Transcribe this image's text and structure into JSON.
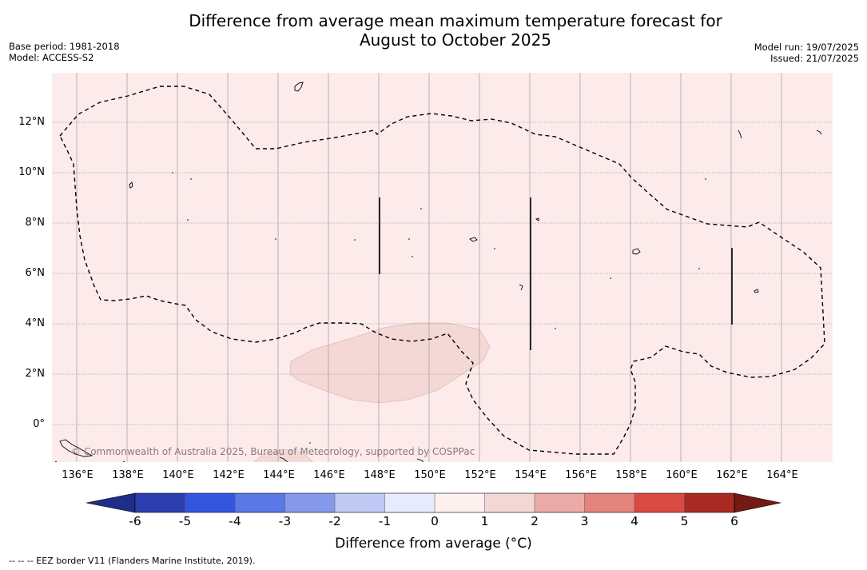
{
  "header": {
    "title_line1": "Difference from average mean maximum temperature forecast for",
    "title_line2": "August to October 2025",
    "base_period": "Base period: 1981-2018",
    "model": "Model: ACCESS-S2",
    "model_run": "Model run: 19/07/2025",
    "issued": "Issued: 21/07/2025"
  },
  "map": {
    "lat_ticks": [
      "12°N",
      "10°N",
      "8°N",
      "6°N",
      "4°N",
      "2°N",
      "0°"
    ],
    "lon_ticks": [
      "136°E",
      "138°E",
      "140°E",
      "142°E",
      "144°E",
      "146°E",
      "148°E",
      "150°E",
      "152°E",
      "154°E",
      "156°E",
      "158°E",
      "160°E",
      "162°E",
      "164°E"
    ],
    "background_anomaly_class": "0 to 1",
    "patch_anomaly_class": "1 to 2",
    "copyright": "© Commonwealth of Australia 2025, Bureau of Meteorology, supported by COSPPac"
  },
  "colorbar": {
    "title": "Difference from average (°C)",
    "labels": [
      "-6",
      "-5",
      "-4",
      "-3",
      "-2",
      "-1",
      "0",
      "1",
      "2",
      "3",
      "4",
      "5",
      "6"
    ],
    "colors": [
      "#1f2d8a",
      "#2b3fb0",
      "#3356e0",
      "#5a78e6",
      "#8599ec",
      "#c0c8f4",
      "#e8ebfb",
      "#fdf0ef",
      "#f2d7d5",
      "#ebaaa5",
      "#e5847d",
      "#d84a42",
      "#a92a22",
      "#731a15"
    ]
  },
  "footer": {
    "note": "--  --  -- EEZ border V11 (Flanders Marine Institute, 2019)."
  }
}
